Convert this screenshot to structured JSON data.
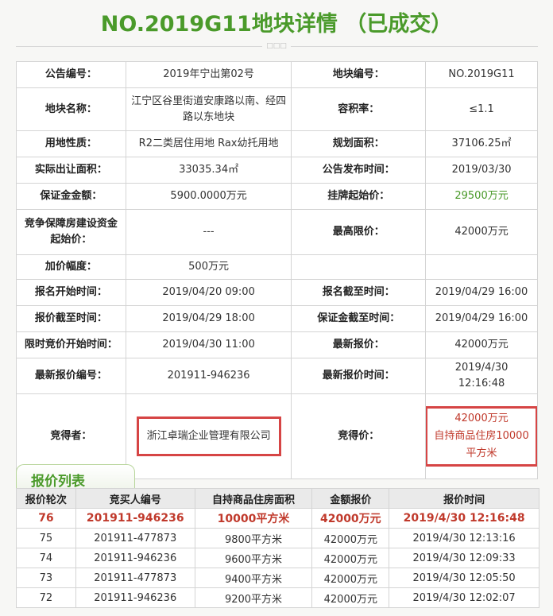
{
  "title": "NO.2019G11地块详情 （已成交）",
  "divider_mark": "□□□",
  "info": [
    [
      "公告编号：",
      "2019年宁出第02号",
      "地块编号：",
      "NO.2019G11"
    ],
    [
      "地块名称：",
      "江宁区谷里街道安康路以南、经四路以东地块",
      "容积率：",
      "≤1.1"
    ],
    [
      "用地性质：",
      "R2二类居住用地 Rax幼托用地",
      "规划面积：",
      "37106.25㎡"
    ],
    [
      "实际出让面积：",
      "33035.34㎡",
      "公告发布时间：",
      "2019/03/30"
    ],
    [
      "保证金金额：",
      "5900.0000万元",
      "挂牌起始价：",
      "29500万元"
    ],
    [
      "竞争保障房建设资金起始价：",
      "---",
      "最高限价：",
      "42000万元"
    ],
    [
      "加价幅度：",
      "500万元",
      "",
      ""
    ],
    [
      "报名开始时间：",
      "2019/04/20 09:00",
      "报名截至时间：",
      "2019/04/29 16:00"
    ],
    [
      "报价截至时间：",
      "2019/04/29 18:00",
      "保证金截至时间：",
      "2019/04/29 16:00"
    ],
    [
      "限时竞价开始时间：",
      "2019/04/30 11:00",
      "最新报价：",
      "42000万元"
    ],
    [
      "最新报价编号：",
      "201911-946236",
      "最新报价时间：",
      "2019/4/30 12:16:48"
    ]
  ],
  "winner": {
    "label": "竞得者：",
    "value": "浙江卓瑞企业管理有限公司",
    "price_label": "竞得价：",
    "price": "42000万元",
    "price_note": "自持商品住房10000平方米"
  },
  "bid_list": {
    "tab": "报价列表",
    "headers": [
      "报价轮次",
      "竞买人编号",
      "自持商品住房面积",
      "金额报价",
      "报价时间"
    ],
    "rows": [
      [
        "76",
        "201911-946236",
        "10000平方米",
        "42000万元",
        "2019/4/30 12:16:48"
      ],
      [
        "75",
        "201911-477873",
        "9800平方米",
        "42000万元",
        "2019/4/30 12:13:16"
      ],
      [
        "74",
        "201911-946236",
        "9600平方米",
        "42000万元",
        "2019/4/30 12:09:33"
      ],
      [
        "73",
        "201911-477873",
        "9400平方米",
        "42000万元",
        "2019/4/30 12:05:50"
      ],
      [
        "72",
        "201911-946236",
        "9200平方米",
        "42000万元",
        "2019/4/30 12:02:07"
      ]
    ]
  },
  "colors": {
    "accent": "#4a9a2a",
    "highlight": "#c0392b",
    "box": "#d64545"
  }
}
